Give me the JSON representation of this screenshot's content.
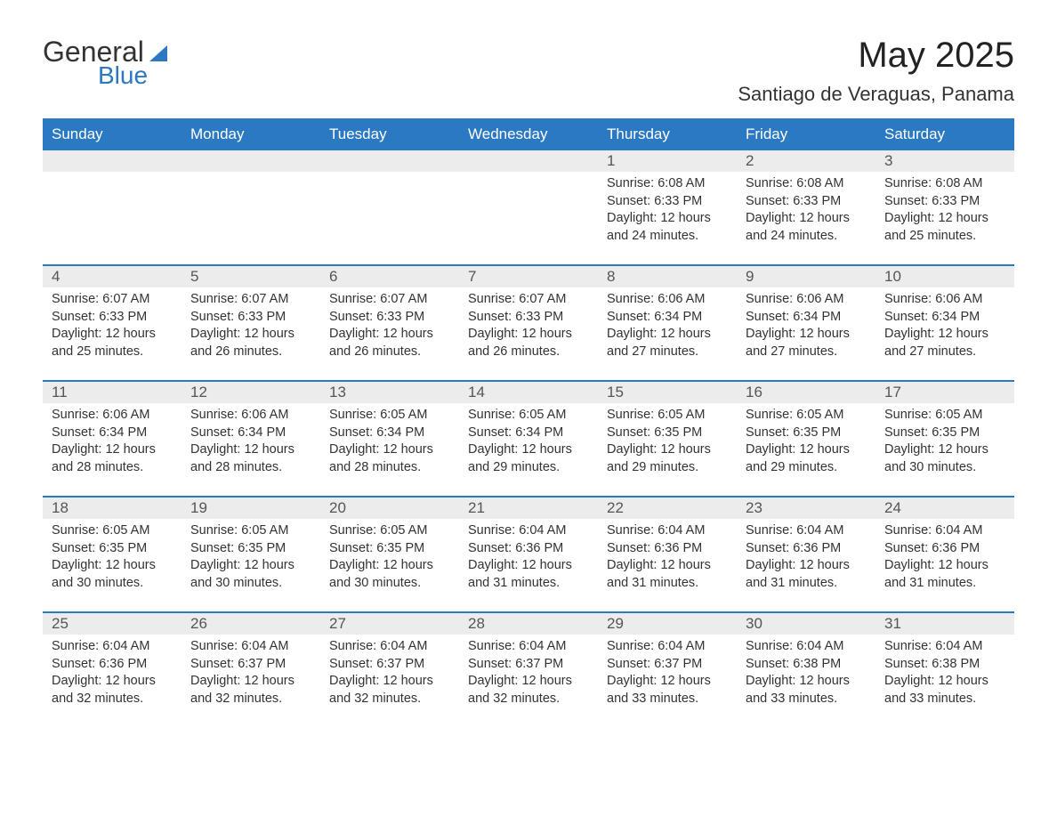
{
  "logo": {
    "text_general": "General",
    "text_blue": "Blue"
  },
  "header": {
    "month_title": "May 2025",
    "location": "Santiago de Veraguas, Panama"
  },
  "colors": {
    "brand_blue": "#2b79c2",
    "header_bg": "#2b79c2",
    "header_text": "#ffffff",
    "day_number_bg": "#ececec",
    "day_number_text": "#555555",
    "body_text": "#333333",
    "page_bg": "#ffffff"
  },
  "layout": {
    "columns": 7,
    "label_prefixes": {
      "sunrise": "Sunrise: ",
      "sunset": "Sunset: ",
      "daylight": "Daylight: "
    }
  },
  "day_names": [
    "Sunday",
    "Monday",
    "Tuesday",
    "Wednesday",
    "Thursday",
    "Friday",
    "Saturday"
  ],
  "weeks": [
    [
      {
        "empty": true
      },
      {
        "empty": true
      },
      {
        "empty": true
      },
      {
        "empty": true
      },
      {
        "day": "1",
        "sunrise": "6:08 AM",
        "sunset": "6:33 PM",
        "daylight": "12 hours and 24 minutes."
      },
      {
        "day": "2",
        "sunrise": "6:08 AM",
        "sunset": "6:33 PM",
        "daylight": "12 hours and 24 minutes."
      },
      {
        "day": "3",
        "sunrise": "6:08 AM",
        "sunset": "6:33 PM",
        "daylight": "12 hours and 25 minutes."
      }
    ],
    [
      {
        "day": "4",
        "sunrise": "6:07 AM",
        "sunset": "6:33 PM",
        "daylight": "12 hours and 25 minutes."
      },
      {
        "day": "5",
        "sunrise": "6:07 AM",
        "sunset": "6:33 PM",
        "daylight": "12 hours and 26 minutes."
      },
      {
        "day": "6",
        "sunrise": "6:07 AM",
        "sunset": "6:33 PM",
        "daylight": "12 hours and 26 minutes."
      },
      {
        "day": "7",
        "sunrise": "6:07 AM",
        "sunset": "6:33 PM",
        "daylight": "12 hours and 26 minutes."
      },
      {
        "day": "8",
        "sunrise": "6:06 AM",
        "sunset": "6:34 PM",
        "daylight": "12 hours and 27 minutes."
      },
      {
        "day": "9",
        "sunrise": "6:06 AM",
        "sunset": "6:34 PM",
        "daylight": "12 hours and 27 minutes."
      },
      {
        "day": "10",
        "sunrise": "6:06 AM",
        "sunset": "6:34 PM",
        "daylight": "12 hours and 27 minutes."
      }
    ],
    [
      {
        "day": "11",
        "sunrise": "6:06 AM",
        "sunset": "6:34 PM",
        "daylight": "12 hours and 28 minutes."
      },
      {
        "day": "12",
        "sunrise": "6:06 AM",
        "sunset": "6:34 PM",
        "daylight": "12 hours and 28 minutes."
      },
      {
        "day": "13",
        "sunrise": "6:05 AM",
        "sunset": "6:34 PM",
        "daylight": "12 hours and 28 minutes."
      },
      {
        "day": "14",
        "sunrise": "6:05 AM",
        "sunset": "6:34 PM",
        "daylight": "12 hours and 29 minutes."
      },
      {
        "day": "15",
        "sunrise": "6:05 AM",
        "sunset": "6:35 PM",
        "daylight": "12 hours and 29 minutes."
      },
      {
        "day": "16",
        "sunrise": "6:05 AM",
        "sunset": "6:35 PM",
        "daylight": "12 hours and 29 minutes."
      },
      {
        "day": "17",
        "sunrise": "6:05 AM",
        "sunset": "6:35 PM",
        "daylight": "12 hours and 30 minutes."
      }
    ],
    [
      {
        "day": "18",
        "sunrise": "6:05 AM",
        "sunset": "6:35 PM",
        "daylight": "12 hours and 30 minutes."
      },
      {
        "day": "19",
        "sunrise": "6:05 AM",
        "sunset": "6:35 PM",
        "daylight": "12 hours and 30 minutes."
      },
      {
        "day": "20",
        "sunrise": "6:05 AM",
        "sunset": "6:35 PM",
        "daylight": "12 hours and 30 minutes."
      },
      {
        "day": "21",
        "sunrise": "6:04 AM",
        "sunset": "6:36 PM",
        "daylight": "12 hours and 31 minutes."
      },
      {
        "day": "22",
        "sunrise": "6:04 AM",
        "sunset": "6:36 PM",
        "daylight": "12 hours and 31 minutes."
      },
      {
        "day": "23",
        "sunrise": "6:04 AM",
        "sunset": "6:36 PM",
        "daylight": "12 hours and 31 minutes."
      },
      {
        "day": "24",
        "sunrise": "6:04 AM",
        "sunset": "6:36 PM",
        "daylight": "12 hours and 31 minutes."
      }
    ],
    [
      {
        "day": "25",
        "sunrise": "6:04 AM",
        "sunset": "6:36 PM",
        "daylight": "12 hours and 32 minutes."
      },
      {
        "day": "26",
        "sunrise": "6:04 AM",
        "sunset": "6:37 PM",
        "daylight": "12 hours and 32 minutes."
      },
      {
        "day": "27",
        "sunrise": "6:04 AM",
        "sunset": "6:37 PM",
        "daylight": "12 hours and 32 minutes."
      },
      {
        "day": "28",
        "sunrise": "6:04 AM",
        "sunset": "6:37 PM",
        "daylight": "12 hours and 32 minutes."
      },
      {
        "day": "29",
        "sunrise": "6:04 AM",
        "sunset": "6:37 PM",
        "daylight": "12 hours and 33 minutes."
      },
      {
        "day": "30",
        "sunrise": "6:04 AM",
        "sunset": "6:38 PM",
        "daylight": "12 hours and 33 minutes."
      },
      {
        "day": "31",
        "sunrise": "6:04 AM",
        "sunset": "6:38 PM",
        "daylight": "12 hours and 33 minutes."
      }
    ]
  ]
}
